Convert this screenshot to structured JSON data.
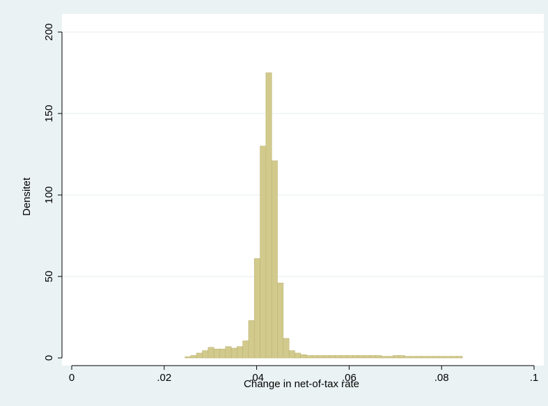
{
  "chart_data": {
    "type": "bar",
    "title": "",
    "xlabel": "Change in net-of-tax rate",
    "ylabel": "Densitet",
    "xlim": [
      0,
      0.1
    ],
    "ylim": [
      0,
      200
    ],
    "xticks": [
      0,
      0.02,
      0.04,
      0.06,
      0.08,
      0.1
    ],
    "xtick_labels": [
      "0",
      ".02",
      ".04",
      ".06",
      ".08",
      ".1"
    ],
    "yticks": [
      0,
      50,
      100,
      150,
      200
    ],
    "ytick_labels": [
      "0",
      "50",
      "100",
      "150",
      "200"
    ],
    "grid": "horizontal",
    "bin_width": 0.00125,
    "bins_start": [
      0.0245,
      0.02575,
      0.027,
      0.02825,
      0.0295,
      0.03075,
      0.032,
      0.03325,
      0.0345,
      0.03575,
      0.037,
      0.03825,
      0.0395,
      0.04075,
      0.042,
      0.04325,
      0.0445,
      0.04575,
      0.047,
      0.04825,
      0.0495,
      0.05075,
      0.052,
      0.05325,
      0.0545,
      0.05575,
      0.057,
      0.05825,
      0.0595,
      0.06075,
      0.062,
      0.06325,
      0.0645,
      0.06575,
      0.067,
      0.06825,
      0.0695,
      0.07075,
      0.072,
      0.07325,
      0.0745,
      0.07575,
      0.077,
      0.07825,
      0.0795,
      0.08075,
      0.082,
      0.08325
    ],
    "values": [
      0.8,
      1.5,
      3,
      4.5,
      6.5,
      5.5,
      5.5,
      7,
      6,
      7,
      10.5,
      23,
      61,
      130,
      175,
      121,
      46,
      12,
      4.5,
      3,
      2,
      1.5,
      1.5,
      1.5,
      1.5,
      1.5,
      1.5,
      1.5,
      1.5,
      1.5,
      1.5,
      1.5,
      1.5,
      1.5,
      1,
      1,
      1.5,
      1.5,
      1,
      1,
      1,
      1,
      1,
      1,
      1,
      1,
      1,
      1
    ],
    "colors": {
      "bar_fill": "#d2ca8c",
      "bar_stroke": "#bdb373",
      "plot_bg": "#ffffff",
      "outer_bg": "#eaf2f3",
      "grid": "#e6eeef"
    }
  }
}
